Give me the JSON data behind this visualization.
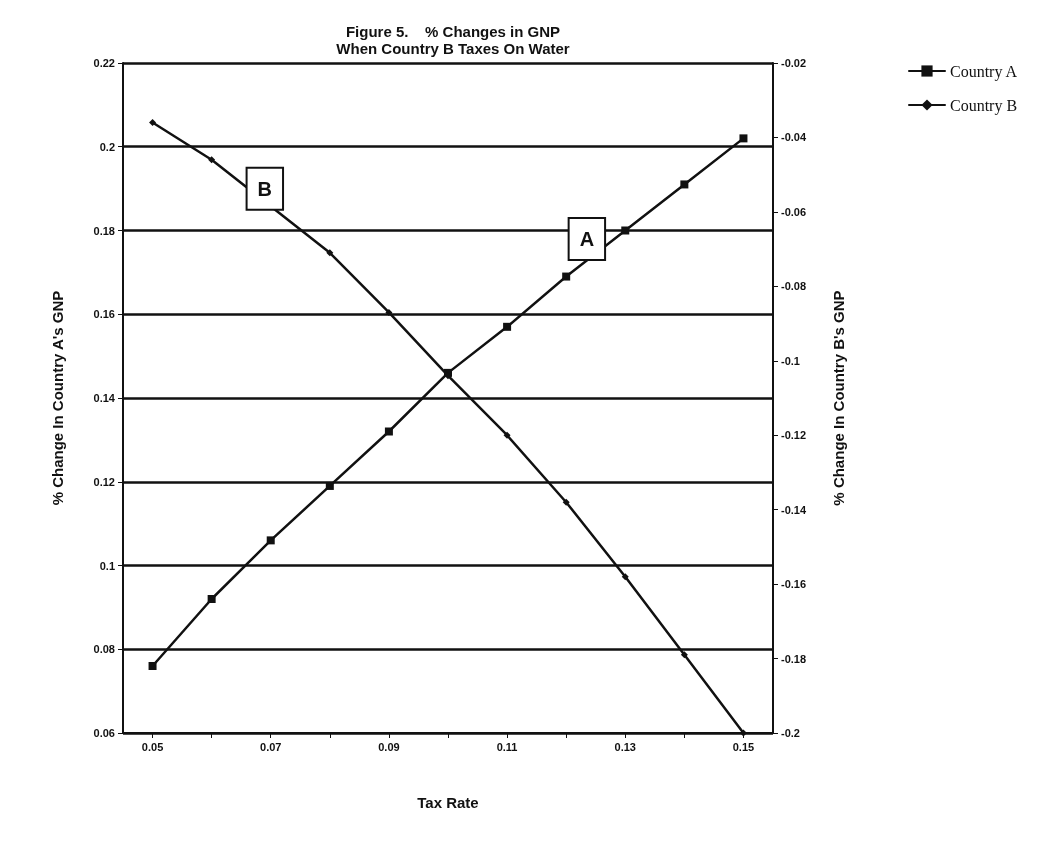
{
  "chart_data": {
    "type": "line",
    "title": "Figure 5.    % Changes in GNP\nWhen Country B Taxes On Water",
    "xlabel": "Tax Rate",
    "ylabel": "% Change In Country A's GNP",
    "y2label": "% Change In Country B's GNP",
    "x": [
      0.05,
      0.06,
      0.07,
      0.08,
      0.09,
      0.1,
      0.11,
      0.12,
      0.13,
      0.14,
      0.15
    ],
    "series": [
      {
        "name": "Country A",
        "color": "#111111",
        "marker": "square",
        "values": [
          0.076,
          0.092,
          0.106,
          0.119,
          0.132,
          0.146,
          0.157,
          0.169,
          0.18,
          0.191,
          0.202
        ]
      },
      {
        "name": "Country B",
        "color": "#111111",
        "marker": "diamond",
        "axis": "y2",
        "values": [
          -0.036,
          -0.046,
          null,
          -0.071,
          -0.087,
          -0.104,
          -0.12,
          -0.138,
          -0.158,
          -0.179,
          -0.2
        ]
      }
    ],
    "xlim": [
      0.045,
      0.155
    ],
    "xticks": [
      0.05,
      {
        "value": 0.06,
        "label": null
      },
      0.07,
      {
        "value": 0.08,
        "label": null
      },
      0.09,
      {
        "value": 0.1,
        "label": null
      },
      0.11,
      {
        "value": 0.12,
        "label": null
      },
      0.13,
      {
        "value": 0.14,
        "label": null
      },
      0.15
    ],
    "ylim": [
      0.06,
      0.22
    ],
    "yticks": [
      0.06,
      0.08,
      0.1,
      0.12,
      0.14,
      0.16,
      0.18,
      0.2,
      0.22
    ],
    "y2lim": [
      -0.2,
      -0.02
    ],
    "y2ticks": [
      -0.2,
      -0.18,
      -0.16,
      -0.14,
      -0.12,
      -0.1,
      -0.08,
      -0.06,
      -0.04,
      -0.02
    ],
    "annotations": [
      {
        "text": "B",
        "x": 0.069,
        "y": 0.19
      },
      {
        "text": "A",
        "x": 0.1235,
        "y": 0.178
      }
    ],
    "grid": "y",
    "legend": "top right",
    "line_style": "solid"
  }
}
